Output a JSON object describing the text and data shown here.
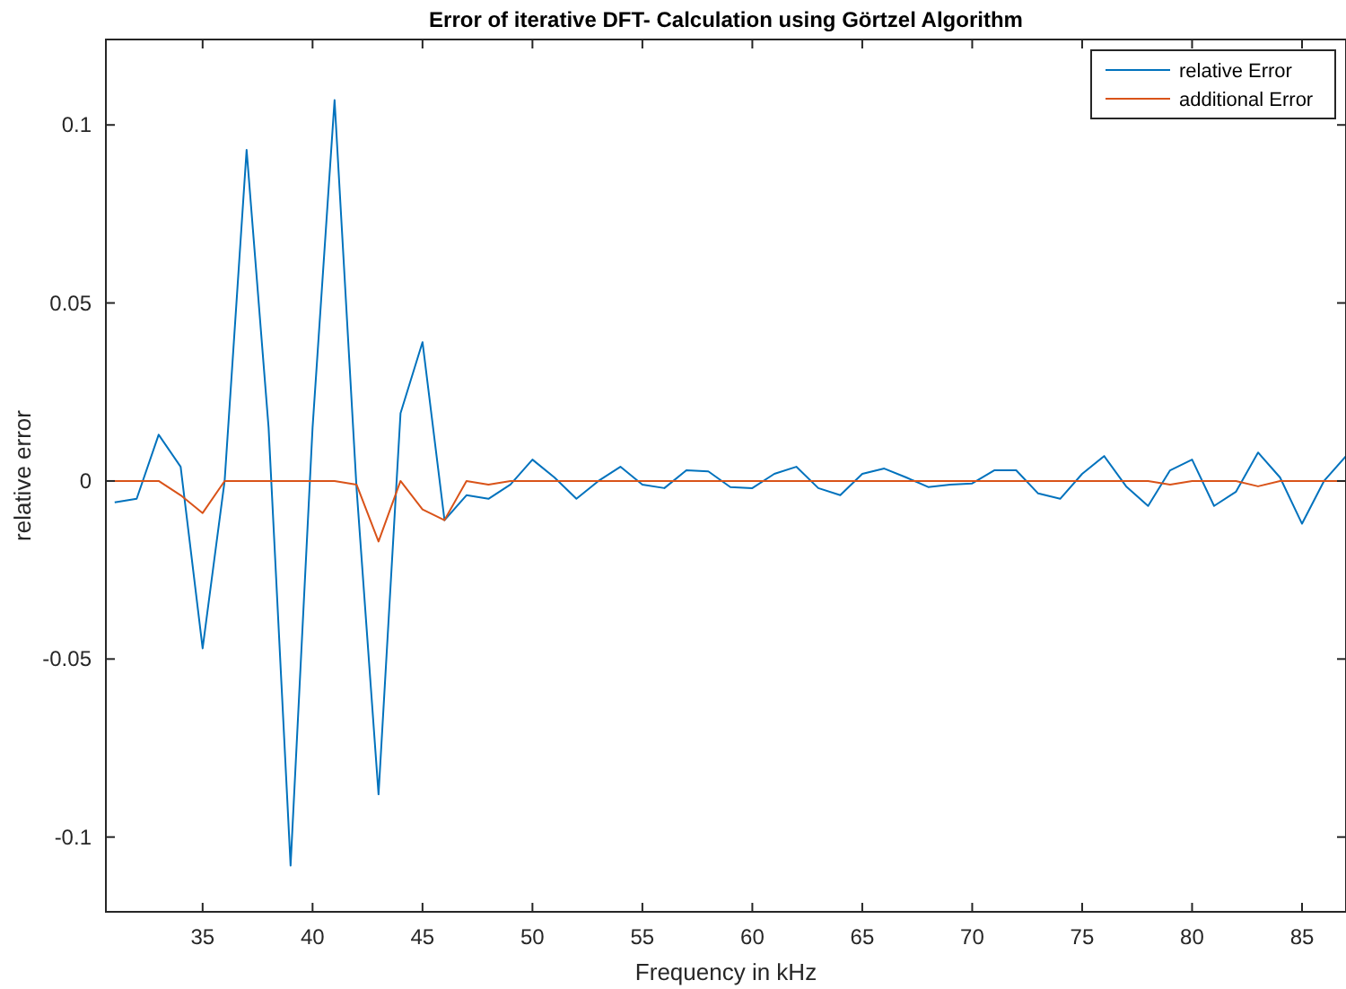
{
  "chart_data": {
    "type": "line",
    "title": "Error of iterative DFT- Calculation using Görtzel Algorithm",
    "xlabel": "Frequency in kHz",
    "ylabel": "relative error",
    "x": [
      31,
      32,
      33,
      34,
      35,
      36,
      37,
      38,
      39,
      40,
      41,
      42,
      43,
      44,
      45,
      46,
      47,
      48,
      49,
      50,
      51,
      52,
      53,
      54,
      55,
      56,
      57,
      58,
      59,
      60,
      61,
      62,
      63,
      64,
      65,
      66,
      67,
      68,
      69,
      70,
      71,
      72,
      73,
      74,
      75,
      76,
      77,
      78,
      79,
      80,
      81,
      82,
      83,
      84,
      85,
      86,
      87
    ],
    "series": [
      {
        "name": "relative Error",
        "color": "#0072bd",
        "values": [
          -0.006,
          -0.005,
          0.013,
          0.004,
          -0.047,
          0.0,
          0.093,
          0.015,
          -0.108,
          0.015,
          0.107,
          -0.002,
          -0.088,
          0.019,
          0.039,
          -0.011,
          -0.004,
          -0.005,
          -0.001,
          0.006,
          0.001,
          -0.005,
          0.0,
          0.004,
          -0.001,
          -0.002,
          0.003,
          0.0027,
          -0.0017,
          -0.002,
          0.002,
          0.004,
          -0.002,
          -0.004,
          0.002,
          0.0035,
          0.001,
          -0.0017,
          -0.001,
          -0.0007,
          0.003,
          0.003,
          -0.0035,
          -0.005,
          0.002,
          0.007,
          -0.0015,
          -0.007,
          0.003,
          0.006,
          -0.007,
          -0.003,
          0.008,
          0.001,
          -0.012,
          0.0,
          0.007
        ]
      },
      {
        "name": "additional Error",
        "color": "#d95319",
        "values": [
          0,
          0,
          0,
          -0.004,
          -0.009,
          0,
          0,
          0,
          0,
          0,
          0,
          -0.001,
          -0.017,
          0,
          -0.008,
          -0.011,
          0,
          -0.001,
          0,
          0,
          0,
          0,
          0,
          0,
          0,
          0,
          0,
          0,
          0,
          0,
          0,
          0,
          0,
          0,
          0,
          0,
          0,
          0,
          0,
          0,
          0,
          0,
          0,
          0,
          0,
          0,
          0,
          0,
          -0.001,
          0,
          0,
          0,
          -0.0015,
          0,
          0,
          0,
          0
        ]
      }
    ],
    "xlim": [
      30.6,
      87
    ],
    "xticks": [
      35,
      40,
      45,
      50,
      55,
      60,
      65,
      70,
      75,
      80,
      85
    ],
    "ylim": [
      -0.121,
      0.124
    ],
    "yticks": [
      -0.1,
      -0.05,
      0,
      0.05,
      0.1
    ],
    "grid": false,
    "legend": "top right",
    "line_style": "solid",
    "marker": "none"
  }
}
